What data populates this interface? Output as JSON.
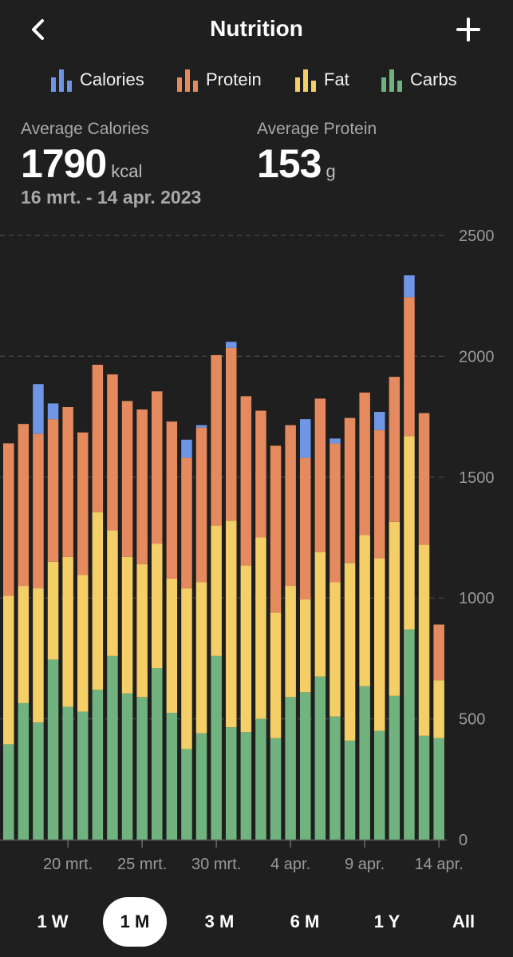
{
  "header": {
    "title": "Nutrition",
    "back_icon": "chevron-left-icon",
    "add_icon": "plus-icon"
  },
  "legend": [
    {
      "label": "Calories",
      "color": "#6f95e6"
    },
    {
      "label": "Protein",
      "color": "#e58a5e"
    },
    {
      "label": "Fat",
      "color": "#f4ce66"
    },
    {
      "label": "Carbs",
      "color": "#71b37e"
    }
  ],
  "stats": {
    "avg_calories": {
      "caption": "Average Calories",
      "value": "1790",
      "unit": "kcal"
    },
    "avg_protein": {
      "caption": "Average Protein",
      "value": "153",
      "unit": "g"
    },
    "date_range": "16 mrt. - 14 apr. 2023"
  },
  "ranges": {
    "w1": "1 W",
    "m1": "1 M",
    "m3": "3 M",
    "m6": "6 M",
    "y1": "1 Y",
    "all": "All",
    "active": "1 M"
  },
  "chart_data": {
    "type": "bar",
    "stacked": true,
    "title": "",
    "ylim": [
      0,
      2500
    ],
    "yticks": [
      0,
      500,
      1000,
      1500,
      2000,
      2500
    ],
    "grid": true,
    "legend_position": "top",
    "x_tick_labels": [
      {
        "label": "20 mrt.",
        "index": 4
      },
      {
        "label": "25 mrt.",
        "index": 9
      },
      {
        "label": "30 mrt.",
        "index": 14
      },
      {
        "label": "4 apr.",
        "index": 19
      },
      {
        "label": "9 apr.",
        "index": 24
      },
      {
        "label": "14 apr.",
        "index": 29
      }
    ],
    "categories": [
      "16 mrt.",
      "17 mrt.",
      "18 mrt.",
      "19 mrt.",
      "20 mrt.",
      "21 mrt.",
      "22 mrt.",
      "23 mrt.",
      "24 mrt.",
      "25 mrt.",
      "26 mrt.",
      "27 mrt.",
      "28 mrt.",
      "29 mrt.",
      "30 mrt.",
      "31 mrt.",
      "1 apr.",
      "2 apr.",
      "3 apr.",
      "4 apr.",
      "5 apr.",
      "6 apr.",
      "7 apr.",
      "8 apr.",
      "9 apr.",
      "10 apr.",
      "11 apr.",
      "12 apr.",
      "13 apr.",
      "14 apr."
    ],
    "series": [
      {
        "name": "Carbs",
        "color": "#71b37e",
        "values": [
          395,
          565,
          485,
          745,
          550,
          530,
          620,
          760,
          605,
          590,
          710,
          525,
          375,
          440,
          760,
          465,
          445,
          500,
          420,
          590,
          610,
          675,
          510,
          410,
          635,
          450,
          595,
          870,
          430,
          420
        ]
      },
      {
        "name": "Fat",
        "color": "#f4ce66",
        "values": [
          615,
          485,
          555,
          405,
          620,
          565,
          735,
          520,
          565,
          550,
          515,
          555,
          665,
          625,
          540,
          855,
          690,
          750,
          520,
          460,
          385,
          515,
          555,
          735,
          625,
          715,
          720,
          800,
          790,
          240
        ]
      },
      {
        "name": "Protein",
        "color": "#e58a5e",
        "values": [
          630,
          670,
          640,
          590,
          620,
          590,
          610,
          645,
          645,
          640,
          630,
          650,
          540,
          640,
          705,
          715,
          700,
          525,
          690,
          665,
          585,
          635,
          575,
          600,
          590,
          530,
          600,
          575,
          545,
          230
        ]
      },
      {
        "name": "Calories",
        "color": "#6f95e6",
        "values": [
          0,
          0,
          205,
          65,
          0,
          0,
          0,
          0,
          0,
          0,
          0,
          0,
          75,
          10,
          0,
          25,
          0,
          0,
          0,
          0,
          160,
          0,
          20,
          0,
          0,
          75,
          0,
          90,
          0,
          0
        ]
      }
    ]
  }
}
